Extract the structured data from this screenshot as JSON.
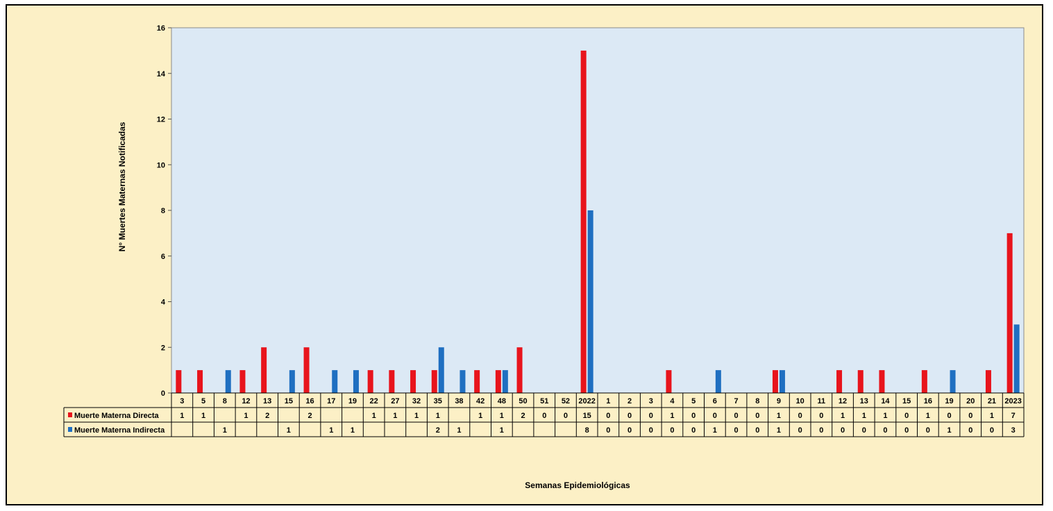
{
  "chart_data": {
    "type": "bar",
    "title": "",
    "xlabel": "Semanas Epidemiológicas",
    "ylabel": "N° Muertes Maternas Notificadas",
    "ylim": [
      0,
      16
    ],
    "yticks": [
      0,
      2,
      4,
      6,
      8,
      10,
      12,
      14,
      16
    ],
    "grid": false,
    "legend": "data-table-left",
    "categories": [
      "3",
      "5",
      "8",
      "12",
      "13",
      "15",
      "16",
      "17",
      "19",
      "22",
      "27",
      "32",
      "35",
      "38",
      "42",
      "48",
      "50",
      "51",
      "52",
      "2022",
      "1",
      "2",
      "3",
      "4",
      "5",
      "6",
      "7",
      "8",
      "9",
      "10",
      "11",
      "12",
      "13",
      "14",
      "15",
      "16",
      "19",
      "20",
      "21",
      "2023"
    ],
    "series": [
      {
        "name": "Muerte Materna Directa",
        "color": "#e8141c",
        "values": [
          1,
          1,
          null,
          1,
          2,
          null,
          2,
          null,
          null,
          1,
          1,
          1,
          1,
          null,
          1,
          1,
          2,
          0,
          0,
          15,
          0,
          0,
          0,
          1,
          0,
          0,
          0,
          0,
          1,
          0,
          0,
          1,
          1,
          1,
          0,
          1,
          0,
          0,
          1,
          7
        ]
      },
      {
        "name": "Muerte Materna Indirecta",
        "color": "#1f6fc1",
        "values": [
          null,
          null,
          1,
          null,
          null,
          1,
          null,
          1,
          1,
          null,
          null,
          null,
          2,
          1,
          null,
          1,
          null,
          null,
          null,
          8,
          0,
          0,
          0,
          0,
          0,
          1,
          0,
          0,
          1,
          0,
          0,
          0,
          0,
          0,
          0,
          0,
          1,
          0,
          0,
          3
        ]
      }
    ]
  }
}
